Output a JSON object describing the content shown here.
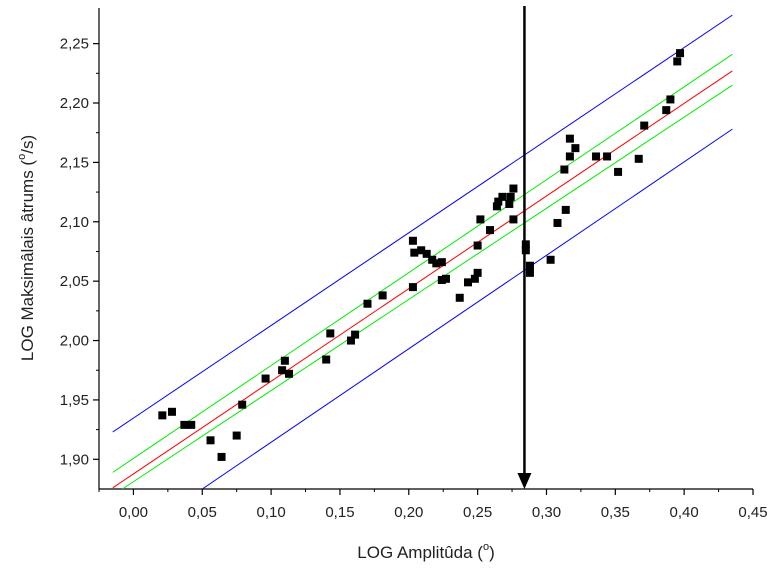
{
  "chart_data": {
    "type": "scatter",
    "title": "",
    "xlabel": {
      "prefix": "LOG Amplitûda (",
      "sup": "o",
      "suffix": ")"
    },
    "ylabel": {
      "prefix": "LOG Maksimâlais âtrums (",
      "sup": "o",
      "suffix": "/s)"
    },
    "xlim": [
      -0.025,
      0.45
    ],
    "ylim": [
      1.875,
      2.28
    ],
    "x_ticks": [
      0.0,
      0.05,
      0.1,
      0.15,
      0.2,
      0.25,
      0.3,
      0.35,
      0.4,
      0.45
    ],
    "x_tick_labels": [
      "0,00",
      "0,05",
      "0,10",
      "0,15",
      "0,20",
      "0,25",
      "0,30",
      "0,35",
      "0,40",
      "0,45"
    ],
    "y_ticks": [
      1.9,
      1.95,
      2.0,
      2.05,
      2.1,
      2.15,
      2.2,
      2.25
    ],
    "y_tick_labels": [
      "1,90",
      "1,95",
      "2,00",
      "2,05",
      "2,10",
      "2,15",
      "2,20",
      "2,25"
    ],
    "grid": false,
    "points": [
      [
        0.021,
        1.937
      ],
      [
        0.028,
        1.94
      ],
      [
        0.037,
        1.929
      ],
      [
        0.042,
        1.929
      ],
      [
        0.056,
        1.916
      ],
      [
        0.064,
        1.902
      ],
      [
        0.075,
        1.92
      ],
      [
        0.079,
        1.946
      ],
      [
        0.096,
        1.968
      ],
      [
        0.108,
        1.975
      ],
      [
        0.11,
        1.983
      ],
      [
        0.113,
        1.972
      ],
      [
        0.14,
        1.984
      ],
      [
        0.143,
        2.006
      ],
      [
        0.158,
        2.0
      ],
      [
        0.161,
        2.005
      ],
      [
        0.17,
        2.031
      ],
      [
        0.181,
        2.038
      ],
      [
        0.203,
        2.045
      ],
      [
        0.203,
        2.084
      ],
      [
        0.204,
        2.074
      ],
      [
        0.209,
        2.076
      ],
      [
        0.213,
        2.073
      ],
      [
        0.217,
        2.068
      ],
      [
        0.22,
        2.065
      ],
      [
        0.224,
        2.066
      ],
      [
        0.224,
        2.051
      ],
      [
        0.227,
        2.052
      ],
      [
        0.237,
        2.036
      ],
      [
        0.243,
        2.049
      ],
      [
        0.248,
        2.052
      ],
      [
        0.25,
        2.057
      ],
      [
        0.25,
        2.08
      ],
      [
        0.252,
        2.102
      ],
      [
        0.259,
        2.093
      ],
      [
        0.264,
        2.113
      ],
      [
        0.265,
        2.117
      ],
      [
        0.268,
        2.121
      ],
      [
        0.273,
        2.115
      ],
      [
        0.274,
        2.121
      ],
      [
        0.276,
        2.128
      ],
      [
        0.276,
        2.102
      ],
      [
        0.285,
        2.081
      ],
      [
        0.285,
        2.076
      ],
      [
        0.288,
        2.063
      ],
      [
        0.288,
        2.057
      ],
      [
        0.303,
        2.068
      ],
      [
        0.308,
        2.099
      ],
      [
        0.313,
        2.144
      ],
      [
        0.314,
        2.11
      ],
      [
        0.317,
        2.17
      ],
      [
        0.317,
        2.155
      ],
      [
        0.321,
        2.162
      ],
      [
        0.336,
        2.155
      ],
      [
        0.344,
        2.155
      ],
      [
        0.352,
        2.142
      ],
      [
        0.367,
        2.153
      ],
      [
        0.371,
        2.181
      ],
      [
        0.387,
        2.194
      ],
      [
        0.39,
        2.203
      ],
      [
        0.395,
        2.235
      ],
      [
        0.397,
        2.242
      ]
    ],
    "lines": [
      {
        "role": "fit",
        "color": "#ff0000",
        "from": [
          -0.015,
          1.876
        ],
        "to": [
          0.435,
          2.227
        ]
      },
      {
        "role": "confidence-upper",
        "color": "#00ee00",
        "from": [
          -0.015,
          1.889
        ],
        "to": [
          0.435,
          2.241
        ]
      },
      {
        "role": "confidence-lower",
        "color": "#00ee00",
        "from": [
          -0.008,
          1.875
        ],
        "to": [
          0.435,
          2.215
        ]
      },
      {
        "role": "prediction-upper",
        "color": "#0000ff",
        "from": [
          -0.015,
          1.923
        ],
        "to": [
          0.435,
          2.274
        ]
      },
      {
        "role": "prediction-lower",
        "color": "#0000ff",
        "from": [
          0.05,
          1.875
        ],
        "to": [
          0.435,
          2.178
        ]
      }
    ],
    "annotation_arrow": {
      "x": 0.284,
      "y_from": 2.28,
      "y_to": 1.875,
      "color": "#000000"
    },
    "marker_color": "#000000"
  }
}
